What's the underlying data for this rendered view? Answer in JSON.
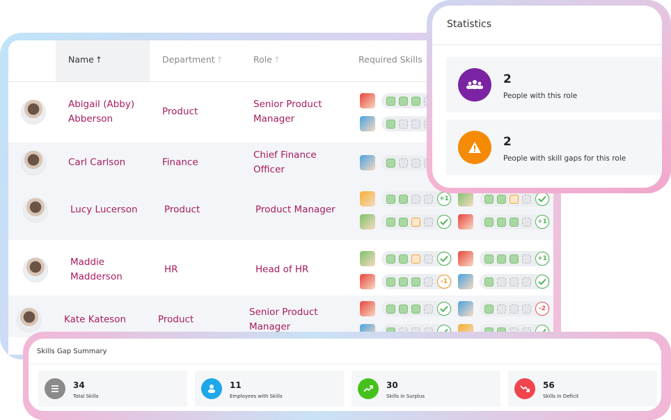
{
  "table": {
    "headers": [
      "Name",
      "Department",
      "Role",
      "Required Skills"
    ],
    "rows": [
      {
        "name": "Abigail (Abby) Abberson",
        "department": "Product",
        "role": "Senior Product Manager",
        "skills": [
          [
            {
              "badge": null
            },
            {
              "badge": null
            }
          ],
          []
        ]
      },
      {
        "name": "Carl Carlson",
        "department": "Finance",
        "role": "Chief Finance Officer",
        "skills": [
          [
            {
              "badge": null
            }
          ],
          []
        ]
      },
      {
        "name": "Lucy Lucerson",
        "department": "Product",
        "role": "Product Manager",
        "skills": [
          [
            {
              "badge": "+1"
            },
            {
              "badge": null
            }
          ],
          [
            {
              "badge": null
            },
            {
              "badge": "+1"
            }
          ]
        ]
      },
      {
        "name": "Maddie Madderson",
        "department": "HR",
        "role": "Head of HR",
        "skills": [
          [
            {
              "badge": null
            },
            {
              "badge": "-1"
            }
          ],
          [
            {
              "badge": "+1"
            },
            {
              "badge": null
            }
          ]
        ]
      },
      {
        "name": "Kate Kateson",
        "department": "Product",
        "role": "Senior Product Manager",
        "skills": [
          [
            {
              "badge": null
            },
            {
              "badge": null
            }
          ],
          [
            {
              "badge": "-2"
            },
            {
              "badge": null
            }
          ]
        ]
      }
    ]
  },
  "statistics": {
    "title": "Statistics",
    "items": [
      {
        "value": 2,
        "label": "People with this role",
        "color": "#7b24a3"
      },
      {
        "value": 2,
        "label": "People with skill gaps for this role",
        "color": "#f58a07"
      }
    ]
  },
  "summary": {
    "title": "Skills Gap Summary",
    "items": [
      {
        "value": 34,
        "label": "Total Skills",
        "color": "#8a8a8a"
      },
      {
        "value": 11,
        "label": "Employees with Skills",
        "color": "#1ea7e9"
      },
      {
        "value": 30,
        "label": "Skills in Surplus",
        "color": "#45c11b"
      },
      {
        "value": 56,
        "label": "Skills in Deficit",
        "color": "#f0454d"
      }
    ]
  }
}
